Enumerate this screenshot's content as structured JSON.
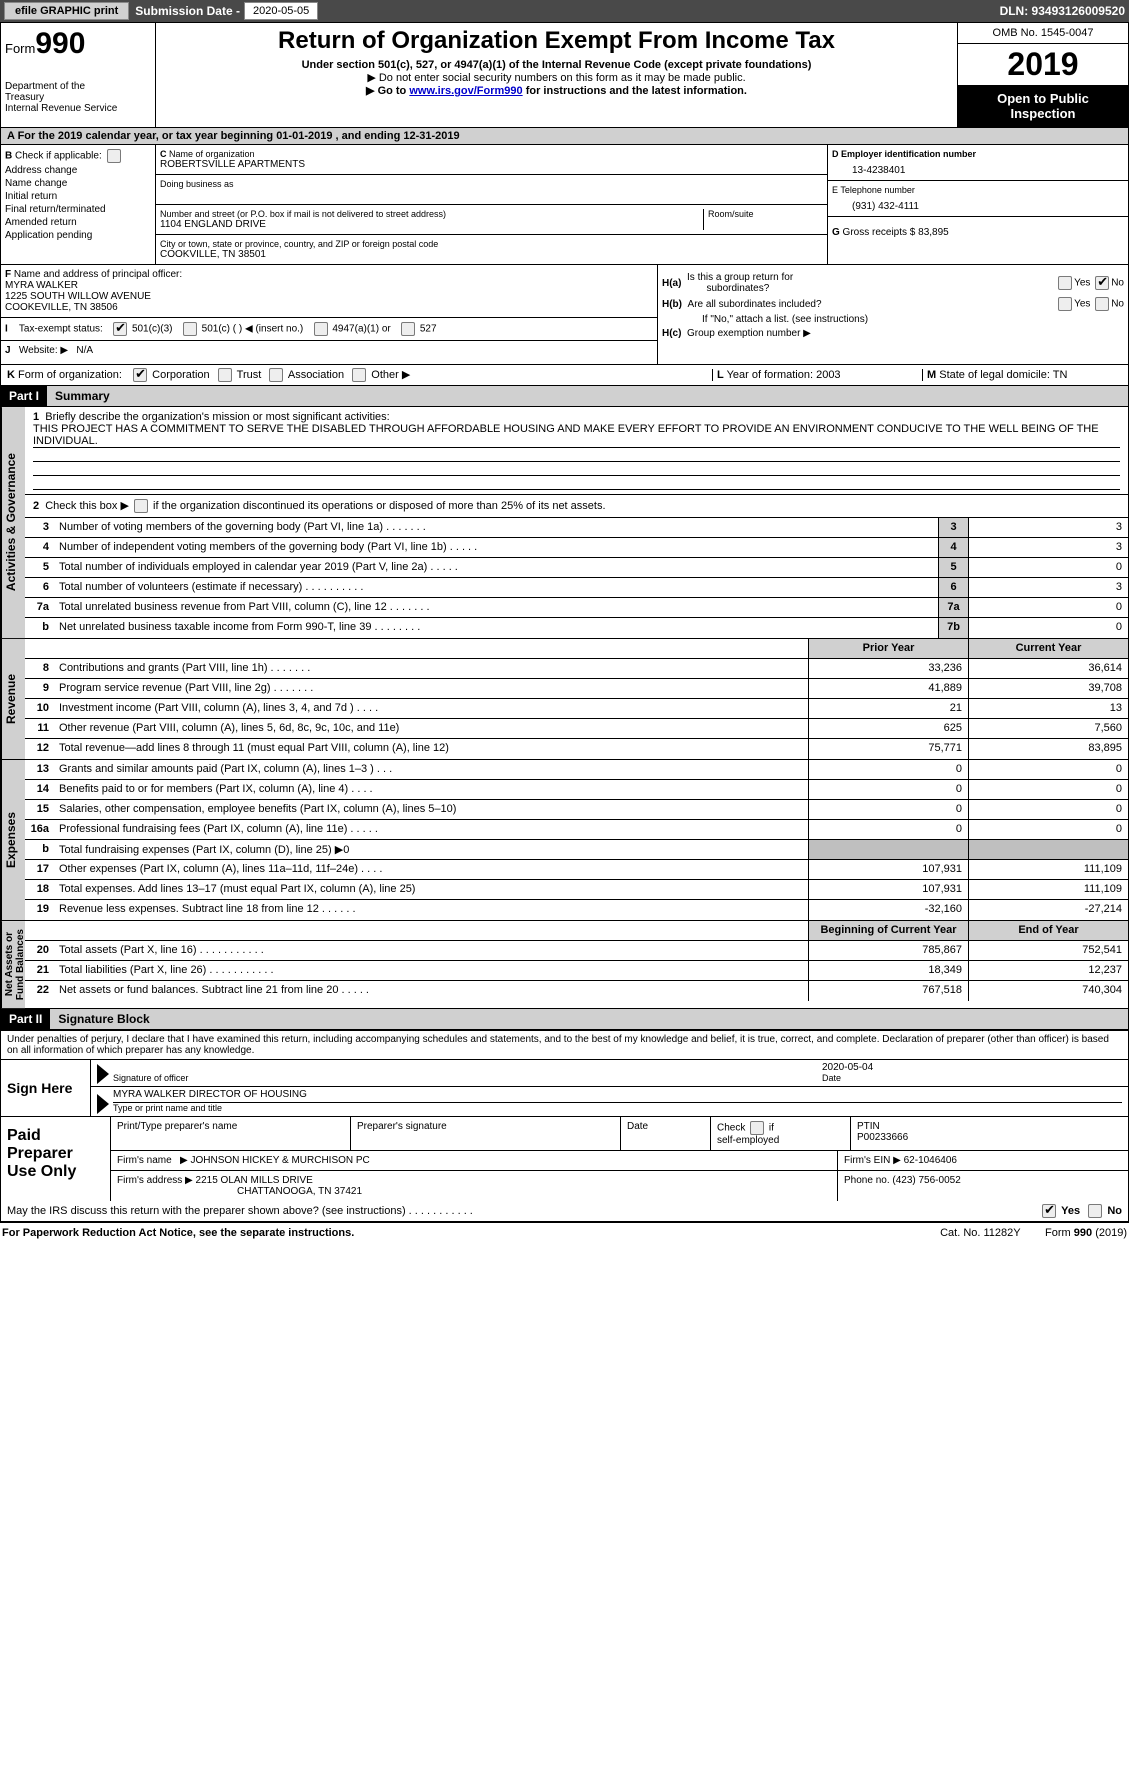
{
  "topbar": {
    "efile": "efile GRAPHIC print",
    "subdate_label": "Submission Date - 2020-05-05",
    "dln": "DLN: 93493126009520"
  },
  "header": {
    "form_label": "Form",
    "form_no": "990",
    "dept": "Department of the Treasury\nInternal Revenue Service",
    "title": "Return of Organization Exempt From Income Tax",
    "subtitle": "Under section 501(c), 527, or 4947(a)(1) of the Internal Revenue Code (except private foundations)",
    "note1": "▶ Do not enter social security numbers on this form as it may be made public.",
    "note2_pre": "▶ Go to ",
    "note2_link": "www.irs.gov/Form990",
    "note2_post": " for instructions and the latest information.",
    "omb": "OMB No. 1545-0047",
    "year": "2019",
    "open": "Open to Public Inspection"
  },
  "row_a": "A   For the 2019 calendar year, or tax year beginning 01-01-2019       , and ending 12-31-2019",
  "box_b": {
    "label": "B Check if applicable:",
    "items": [
      "Address change",
      "Name change",
      "Initial return",
      "Final return/terminated",
      "Amended return",
      "Application pending"
    ]
  },
  "box_c": {
    "label": "C Name of organization",
    "name": "ROBERTSVILLE APARTMENTS",
    "dba_label": "Doing business as",
    "dba": "",
    "street_label": "Number and street (or P.O. box if mail is not delivered to street address)",
    "street": "1104 ENGLAND DRIVE",
    "room_label": "Room/suite",
    "city_label": "City or town, state or province, country, and ZIP or foreign postal code",
    "city": "COOKVILLE, TN  38501"
  },
  "box_d": {
    "label": "D Employer identification number",
    "val": "13-4238401"
  },
  "box_e": {
    "label": "E Telephone number",
    "val": "(931) 432-4111"
  },
  "box_g": {
    "label": "G Gross receipts $",
    "val": "83,895"
  },
  "box_f": {
    "label": "F  Name and address of principal officer:",
    "name": "MYRA WALKER",
    "addr1": "1225 SOUTH WILLOW AVENUE",
    "addr2": "COOKEVILLE, TN  38506"
  },
  "box_h": {
    "ha": "H(a)   Is this a group return for subordinates?",
    "hb": "H(b)   Are all subordinates included?",
    "hb_note": "If \"No,\" attach a list. (see instructions)",
    "hc": "H(c)   Group exemption number ▶",
    "yes": "Yes",
    "no": "No"
  },
  "row_i": {
    "label": "I     Tax-exempt status:",
    "o1": "501(c)(3)",
    "o2": "501(c) (   ) ◀ (insert no.)",
    "o3": "4947(a)(1) or",
    "o4": "527"
  },
  "row_j": {
    "label": "J    Website: ▶",
    "val": "N/A"
  },
  "row_k": {
    "label": "K Form of organization:",
    "o1": "Corporation",
    "o2": "Trust",
    "o3": "Association",
    "o4": "Other ▶"
  },
  "row_l": {
    "label": "L Year of formation:",
    "val": "2003"
  },
  "row_m": {
    "label": "M State of legal domicile:",
    "val": "TN"
  },
  "part1": {
    "num": "Part I",
    "title": "Summary"
  },
  "summary": {
    "q1": "Briefly describe the organization's mission or most significant activities:",
    "q1_text": "THIS PROJECT HAS A COMMITMENT TO SERVE THE DISABLED THROUGH AFFORDABLE HOUSING AND MAKE EVERY EFFORT TO PROVIDE AN ENVIRONMENT CONDUCIVE TO THE WELL BEING OF THE INDIVIDUAL.",
    "q2_pre": "Check this box ▶",
    "q2": "if the organization discontinued its operations or disposed of more than 25% of its net assets.",
    "rows_ag": [
      {
        "n": "3",
        "d": "Number of voting members of the governing body (Part VI, line 1a)   .     .     .     .     .     .     .",
        "b": "3",
        "v": "3"
      },
      {
        "n": "4",
        "d": "Number of independent voting members of the governing body (Part VI, line 1b)   .     .     .     .     .",
        "b": "4",
        "v": "3"
      },
      {
        "n": "5",
        "d": "Total number of individuals employed in calendar year 2019 (Part V, line 2a)   .     .     .     .     .",
        "b": "5",
        "v": "0"
      },
      {
        "n": "6",
        "d": "Total number of volunteers (estimate if necessary)   .     .     .     .     .     .     .     .     .     .",
        "b": "6",
        "v": "3"
      },
      {
        "n": "7a",
        "d": "Total unrelated business revenue from Part VIII, column (C), line 12   .     .     .     .     .     .     .",
        "b": "7a",
        "v": "0"
      },
      {
        "n": "b",
        "d": "Net unrelated business taxable income from Form 990-T, line 39   .     .     .     .     .     .     .     .",
        "b": "7b",
        "v": "0"
      }
    ],
    "hdr_prior": "Prior Year",
    "hdr_curr": "Current Year",
    "rows_rev": [
      {
        "n": "8",
        "d": "Contributions and grants (Part VIII, line 1h)   .     .     .     .     .     .     .",
        "p": "33,236",
        "c": "36,614"
      },
      {
        "n": "9",
        "d": "Program service revenue (Part VIII, line 2g)   .     .     .     .     .     .     .",
        "p": "41,889",
        "c": "39,708"
      },
      {
        "n": "10",
        "d": "Investment income (Part VIII, column (A), lines 3, 4, and 7d )   .     .     .     .",
        "p": "21",
        "c": "13"
      },
      {
        "n": "11",
        "d": "Other revenue (Part VIII, column (A), lines 5, 6d, 8c, 9c, 10c, and 11e)",
        "p": "625",
        "c": "7,560"
      },
      {
        "n": "12",
        "d": "Total revenue—add lines 8 through 11 (must equal Part VIII, column (A), line 12)",
        "p": "75,771",
        "c": "83,895"
      }
    ],
    "rows_exp": [
      {
        "n": "13",
        "d": "Grants and similar amounts paid (Part IX, column (A), lines 1–3 )   .     .     .",
        "p": "0",
        "c": "0"
      },
      {
        "n": "14",
        "d": "Benefits paid to or for members (Part IX, column (A), line 4)   .     .     .     .",
        "p": "0",
        "c": "0"
      },
      {
        "n": "15",
        "d": "Salaries, other compensation, employee benefits (Part IX, column (A), lines 5–10)",
        "p": "0",
        "c": "0"
      },
      {
        "n": "16a",
        "d": "Professional fundraising fees (Part IX, column (A), line 11e)   .     .     .     .     .",
        "p": "0",
        "c": "0"
      },
      {
        "n": "b",
        "d": "Total fundraising expenses (Part IX, column (D), line 25) ▶0",
        "p": "",
        "c": "",
        "grey": true
      },
      {
        "n": "17",
        "d": "Other expenses (Part IX, column (A), lines 11a–11d, 11f–24e)   .     .     .     .",
        "p": "107,931",
        "c": "111,109"
      },
      {
        "n": "18",
        "d": "Total expenses. Add lines 13–17 (must equal Part IX, column (A), line 25)",
        "p": "107,931",
        "c": "111,109"
      },
      {
        "n": "19",
        "d": "Revenue less expenses. Subtract line 18 from line 12   .     .     .     .     .     .",
        "p": "-32,160",
        "c": "-27,214"
      }
    ],
    "hdr_beg": "Beginning of Current Year",
    "hdr_end": "End of Year",
    "rows_na": [
      {
        "n": "20",
        "d": "Total assets (Part X, line 16)   .     .     .     .     .     .     .     .     .     .     .",
        "p": "785,867",
        "c": "752,541"
      },
      {
        "n": "21",
        "d": "Total liabilities (Part X, line 26)   .     .     .     .     .     .     .     .     .     .     .",
        "p": "18,349",
        "c": "12,237"
      },
      {
        "n": "22",
        "d": "Net assets or fund balances. Subtract line 21 from line 20   .     .     .     .     .",
        "p": "767,518",
        "c": "740,304"
      }
    ],
    "tab_ag": "Activities & Governance",
    "tab_rev": "Revenue",
    "tab_exp": "Expenses",
    "tab_na": "Net Assets or\nFund Balances"
  },
  "part2": {
    "num": "Part II",
    "title": "Signature Block"
  },
  "sig": {
    "decl": "Under penalties of perjury, I declare that I have examined this return, including accompanying schedules and statements, and to the best of my knowledge and belief, it is true, correct, and complete. Declaration of preparer (other than officer) is based on all information of which preparer has any knowledge.",
    "sign_here": "Sign Here",
    "sig_officer": "Signature of officer",
    "date": "Date",
    "date_val": "2020-05-04",
    "name_title": "MYRA WALKER  DIRECTOR OF HOUSING",
    "name_label": "Type or print name and title"
  },
  "prep": {
    "label": "Paid Preparer Use Only",
    "print_label": "Print/Type preparer's name",
    "prep_sig": "Preparer's signature",
    "date": "Date",
    "check_self": "Check",
    "if_self": "if self-employed",
    "ptin_label": "PTIN",
    "ptin": "P00233666",
    "firm_name_label": "Firm's name    ▶",
    "firm_name": "JOHNSON HICKEY & MURCHISON PC",
    "firm_ein_label": "Firm's EIN ▶",
    "firm_ein": "62-1046406",
    "firm_addr_label": "Firm's address ▶",
    "firm_addr1": "2215 OLAN MILLS DRIVE",
    "firm_addr2": "CHATTANOOGA, TN  37421",
    "phone_label": "Phone no.",
    "phone": "(423) 756-0052"
  },
  "discuss": {
    "q": "May the IRS discuss this return with the preparer shown above? (see instructions)   .     .     .     .     .     .     .     .     .     .     .",
    "yes": "Yes",
    "no": "No"
  },
  "footer": {
    "left": "For Paperwork Reduction Act Notice, see the separate instructions.",
    "mid": "Cat. No. 11282Y",
    "right": "Form 990 (2019)"
  }
}
